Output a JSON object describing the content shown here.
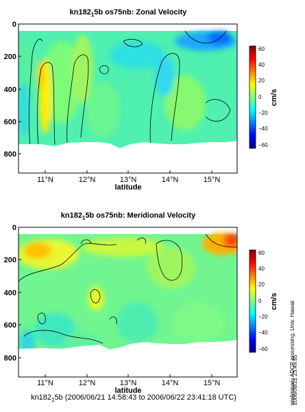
{
  "chart_data": [
    {
      "type": "heatmap",
      "title_parts": [
        "kn182",
        "1",
        "5b os75nb: Zonal Velocity"
      ],
      "xlabel": "latitude",
      "ylabel": "",
      "xlim": [
        10.4,
        15.65
      ],
      "ylim": [
        920,
        0
      ],
      "x_ticks": [
        11,
        12,
        13,
        14,
        15
      ],
      "x_ticklabels": [
        "11°N",
        "12°N",
        "13°N",
        "14°N",
        "15°N"
      ],
      "y_ticks": [
        0,
        200,
        400,
        600,
        800
      ],
      "y_ticklabels": [
        "0",
        "200",
        "400",
        "600",
        "800"
      ],
      "colorbar": {
        "label": "cm/s",
        "range": [
          -65,
          65
        ],
        "ticks": [
          60,
          40,
          20,
          0,
          -20,
          -40,
          -60
        ],
        "ticklabels": [
          "60",
          "40",
          "20",
          "0",
          "−20",
          "−40",
          "−60"
        ]
      },
      "data_top": 45,
      "data_bottom_by_lat": [
        [
          10.4,
          715
        ],
        [
          10.95,
          715
        ],
        [
          11.3,
          720
        ],
        [
          11.7,
          705
        ],
        [
          12.0,
          700
        ],
        [
          12.25,
          700
        ],
        [
          12.5,
          715
        ],
        [
          12.75,
          735
        ],
        [
          13.0,
          715
        ],
        [
          13.3,
          705
        ],
        [
          13.6,
          710
        ],
        [
          14.0,
          715
        ],
        [
          14.4,
          715
        ],
        [
          14.8,
          700
        ],
        [
          15.2,
          700
        ],
        [
          15.65,
          690
        ]
      ],
      "dominant_values_cm_s": [
        {
          "lat": 10.5,
          "value": 10
        },
        {
          "lat": 10.8,
          "value": 15
        },
        {
          "lat": 11.1,
          "value": 38
        },
        {
          "lat": 11.4,
          "value": 20
        },
        {
          "lat": 12.0,
          "value": 12
        },
        {
          "lat": 12.6,
          "value": 10
        },
        {
          "lat": 13.4,
          "value": 8
        },
        {
          "lat": 14.2,
          "value": 10
        },
        {
          "lat": 15.2,
          "value": -6
        }
      ]
    },
    {
      "type": "heatmap",
      "title_parts": [
        "kn182",
        "1",
        "5b os75nb: Meridional Velocity"
      ],
      "xlabel": "latitude",
      "ylabel": "",
      "xlim": [
        10.4,
        15.65
      ],
      "ylim": [
        920,
        0
      ],
      "x_ticks": [
        11,
        12,
        13,
        14,
        15
      ],
      "x_ticklabels": [
        "11°N",
        "12°N",
        "13°N",
        "14°N",
        "15°N"
      ],
      "y_ticks": [
        0,
        200,
        400,
        600,
        800
      ],
      "y_ticklabels": [
        "0",
        "200",
        "400",
        "600",
        "800"
      ],
      "colorbar": {
        "label": "cm/s",
        "range": [
          -65,
          65
        ],
        "ticks": [
          60,
          40,
          20,
          0,
          -20,
          -40,
          -60
        ],
        "ticklabels": [
          "60",
          "40",
          "20",
          "0",
          "−20",
          "−40",
          "−60"
        ]
      },
      "data_top": 45,
      "data_bottom_by_lat": [
        [
          10.4,
          735
        ],
        [
          10.95,
          730
        ],
        [
          11.4,
          725
        ],
        [
          11.75,
          705
        ],
        [
          12.0,
          705
        ],
        [
          12.3,
          720
        ],
        [
          12.6,
          700
        ],
        [
          13.0,
          695
        ],
        [
          13.3,
          705
        ],
        [
          13.6,
          710
        ],
        [
          14.0,
          705
        ],
        [
          14.4,
          710
        ],
        [
          14.8,
          700
        ],
        [
          15.2,
          700
        ],
        [
          15.65,
          690
        ]
      ],
      "dominant_values_cm_s": [
        {
          "lat": 10.8,
          "value": 28
        },
        {
          "lat": 11.5,
          "value": 18
        },
        {
          "lat": 12.3,
          "value": 24
        },
        {
          "lat": 13.2,
          "value": 14
        },
        {
          "lat": 14.3,
          "value": 12
        },
        {
          "lat": 15.5,
          "value": 48
        }
      ]
    }
  ],
  "footer": {
    "prefix": "kn182",
    "sub": "1",
    "rest": "5b (2006/06/21 14:58:43 to 2006/06/22 23:41:18 UTC)"
  },
  "side_note": "preliminary ADCP processing,  Univ. Hawaii",
  "timestamp": "2006/08/22 23:49:55"
}
